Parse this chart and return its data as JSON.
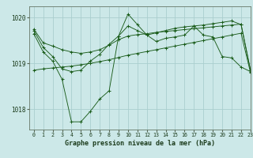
{
  "title": "Graphe pression niveau de la mer (hPa)",
  "background_color": "#cce8e8",
  "grid_color": "#aacece",
  "line_color": "#1a5c1a",
  "xlim": [
    -0.5,
    23
  ],
  "ylim": [
    1017.55,
    1020.25
  ],
  "yticks": [
    1018,
    1019,
    1020
  ],
  "xticks": [
    0,
    1,
    2,
    3,
    4,
    5,
    6,
    7,
    8,
    9,
    10,
    11,
    12,
    13,
    14,
    15,
    16,
    17,
    18,
    19,
    20,
    21,
    22,
    23
  ],
  "series": [
    [
      1019.75,
      1019.45,
      1019.38,
      1019.3,
      1019.25,
      1019.22,
      1019.25,
      1019.3,
      1019.4,
      1019.52,
      1019.6,
      1019.63,
      1019.65,
      1019.68,
      1019.7,
      1019.72,
      1019.74,
      1019.76,
      1019.78,
      1019.8,
      1019.82,
      1019.84,
      1019.86,
      1018.85
    ],
    [
      1018.85,
      1018.88,
      1018.9,
      1018.92,
      1018.94,
      1018.97,
      1019.0,
      1019.04,
      1019.08,
      1019.13,
      1019.18,
      1019.22,
      1019.26,
      1019.3,
      1019.34,
      1019.38,
      1019.42,
      1019.46,
      1019.5,
      1019.54,
      1019.58,
      1019.62,
      1019.66,
      1018.8
    ],
    [
      1019.72,
      1019.35,
      1019.15,
      1018.88,
      1018.82,
      1018.85,
      1019.05,
      1019.2,
      1019.42,
      1019.6,
      1019.82,
      1019.72,
      1019.62,
      1019.67,
      1019.72,
      1019.77,
      1019.8,
      1019.82,
      1019.84,
      1019.87,
      1019.9,
      1019.93,
      1019.85,
      1018.85
    ],
    [
      1019.65,
      1019.25,
      1019.05,
      1018.65,
      1017.72,
      1017.72,
      1017.95,
      1018.22,
      1018.4,
      1019.6,
      1020.08,
      1019.85,
      1019.62,
      1019.48,
      1019.55,
      1019.58,
      1019.62,
      1019.82,
      1019.62,
      1019.58,
      1019.15,
      1019.12,
      1018.92,
      1018.82
    ]
  ]
}
